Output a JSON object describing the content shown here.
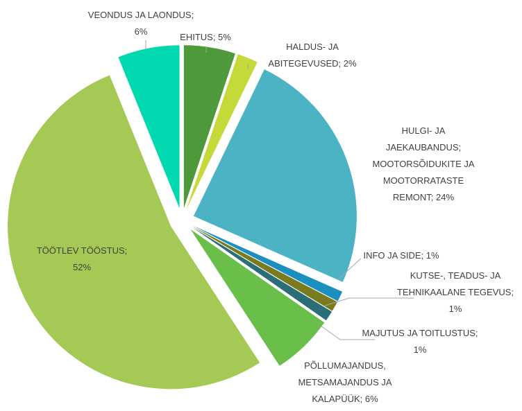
{
  "chart_data": {
    "type": "pie",
    "values": [
      5,
      2,
      24,
      1,
      1,
      1,
      6,
      52,
      6
    ],
    "value_labels": [
      [
        "EHITUS; 5%"
      ],
      [
        "HALDUS- JA",
        "ABITEGEVUSED; 2%"
      ],
      [
        "HULGI- JA",
        "JAEKAUBANDUS;",
        "MOOTORSÕIDUKITE JA",
        "MOOTORRATASTE",
        "REMONT; 24%"
      ],
      [
        "INFO JA SIDE; 1%"
      ],
      [
        "KUTSE-, TEADUS- JA",
        "TEHNIKAALANE TEGEVUS;",
        "1%"
      ],
      [
        "MAJUTUS JA TOITLUSTUS;",
        "1%"
      ],
      [
        "PÕLLUMAJANDUS,",
        "METSAMAJANDUS JA",
        "KALAPÜÜK; 6%"
      ],
      [
        "TÖÖTLEV TÖÖSTUS;",
        "52%"
      ],
      [
        "VEONDUS JA LAONDUS;",
        "6%"
      ]
    ],
    "colors": [
      "#4e9a3a",
      "#c5d93a",
      "#4bb3c4",
      "#1a8fc0",
      "#7a7a1e",
      "#2a6e78",
      "#6abf4b",
      "#a5c955",
      "#00d9b0"
    ],
    "exploded": true
  }
}
